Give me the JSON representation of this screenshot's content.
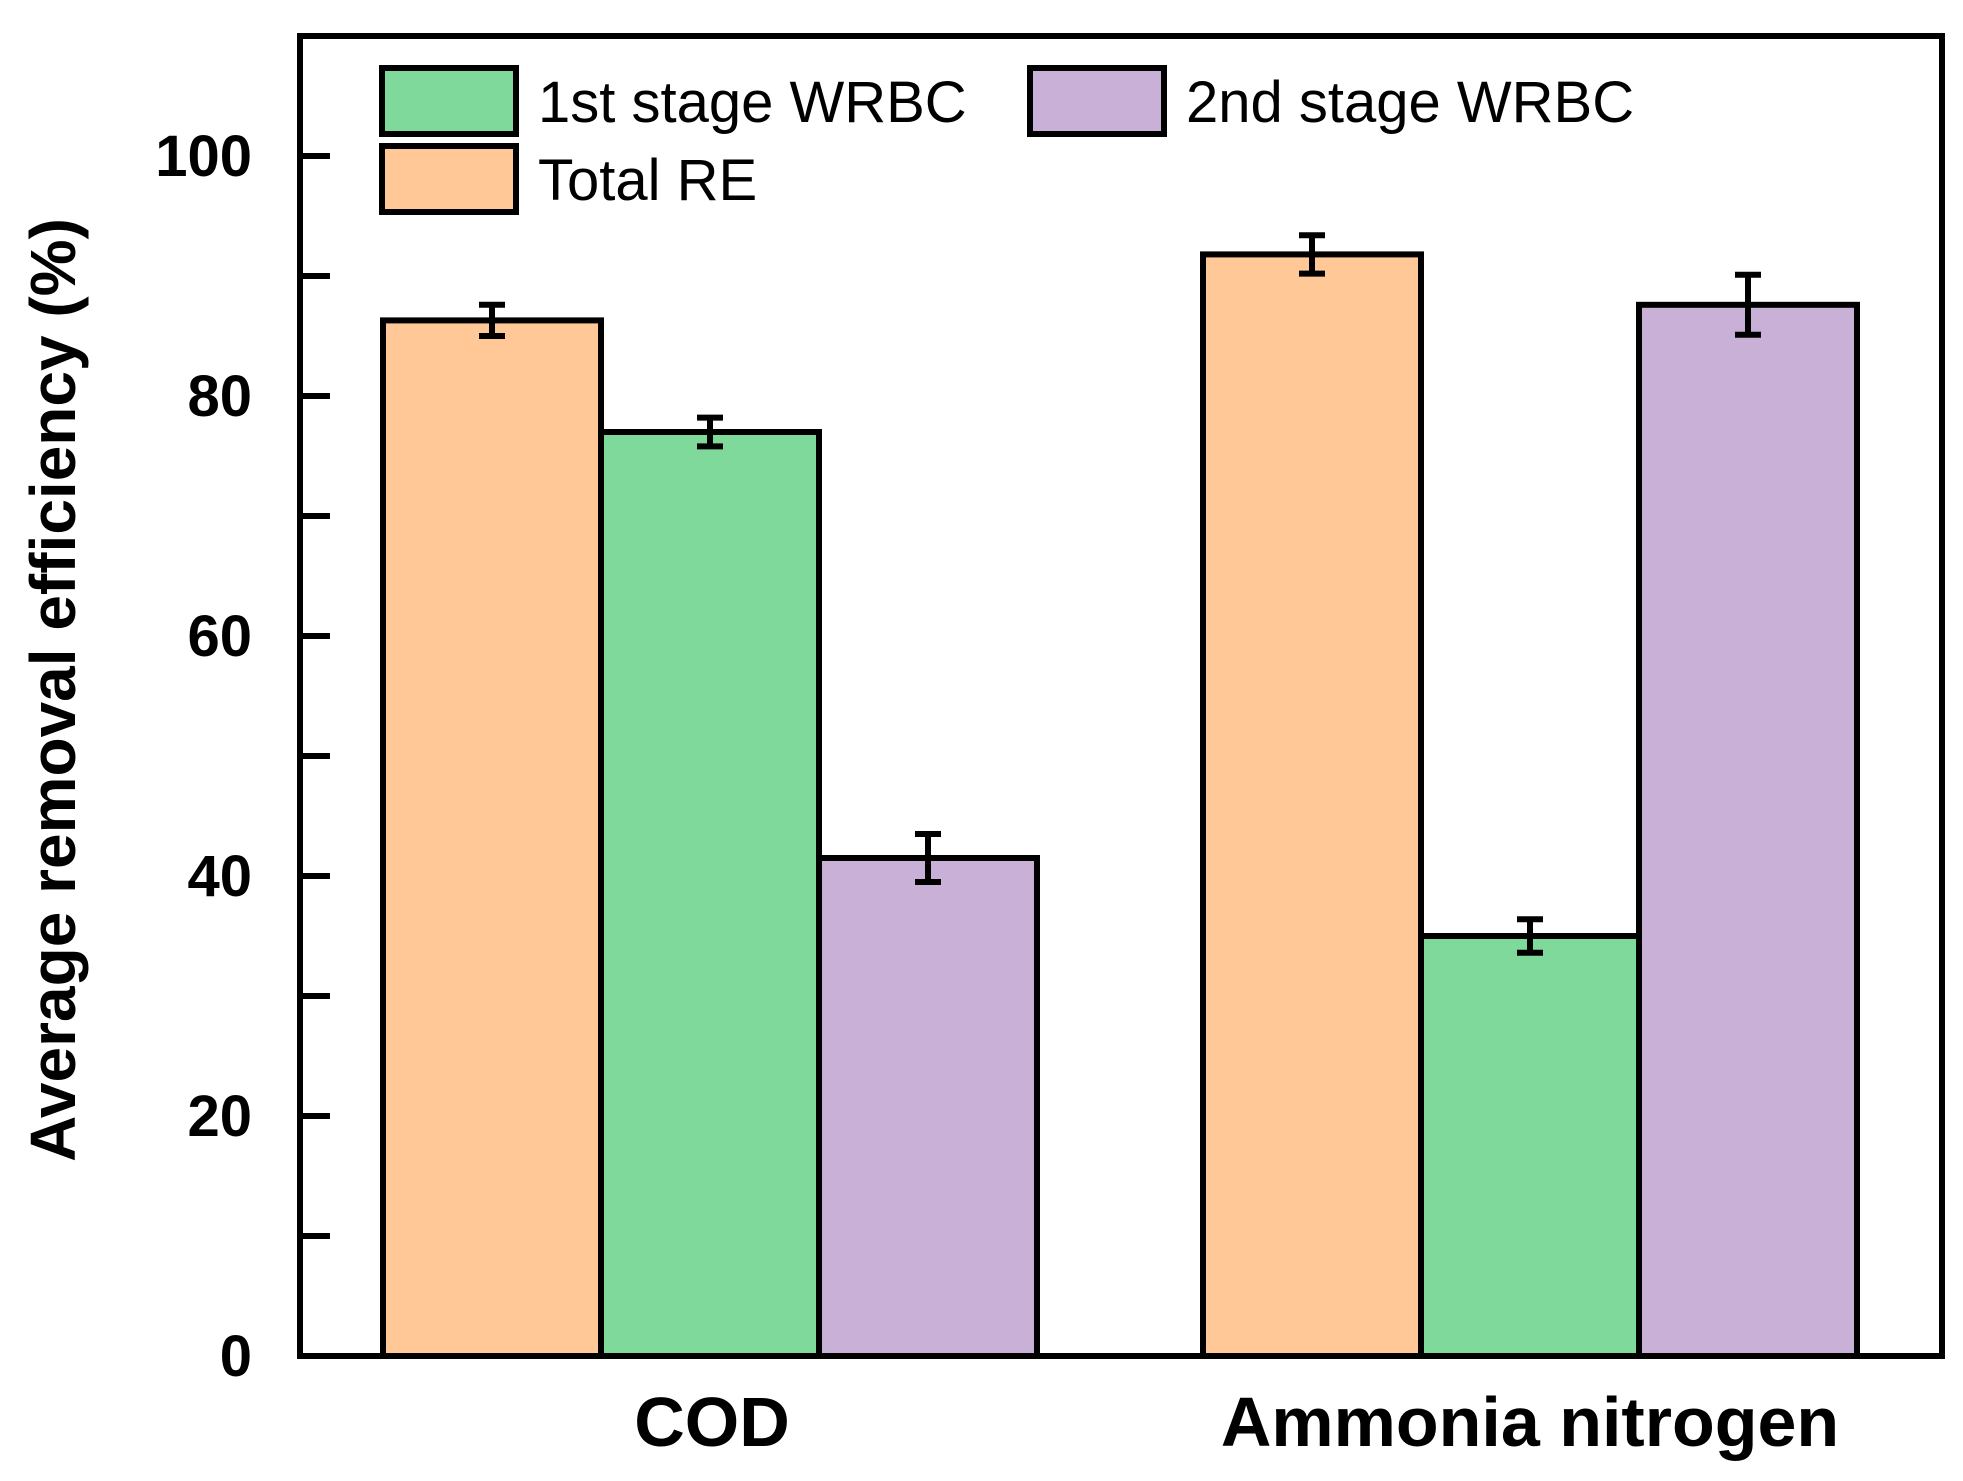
{
  "chart_data": {
    "type": "bar",
    "title": "",
    "xlabel": "",
    "ylabel": "Average removal efficiency (%)",
    "ylim": [
      0,
      110
    ],
    "yticks": [
      0,
      20,
      40,
      60,
      80,
      100
    ],
    "yminor_ticks": [
      10,
      30,
      50,
      70,
      90
    ],
    "categories": [
      "COD",
      "Ammonia nitrogen"
    ],
    "series": [
      {
        "name": "Total RE",
        "color": "#FFC896",
        "values": [
          86.3,
          91.8
        ],
        "errors": [
          1.3,
          1.6
        ]
      },
      {
        "name": "1st stage WRBC",
        "color": "#7FD99A",
        "values": [
          77.0,
          35.0
        ],
        "errors": [
          1.2,
          1.4
        ]
      },
      {
        "name": "2nd stage WRBC",
        "color": "#C8B0D6",
        "values": [
          41.5,
          87.6
        ],
        "errors": [
          2.0,
          2.5
        ]
      }
    ],
    "legend": {
      "position": "top-left",
      "order": [
        "1st stage WRBC",
        "2nd stage WRBC",
        "Total RE"
      ]
    },
    "grid": false
  }
}
